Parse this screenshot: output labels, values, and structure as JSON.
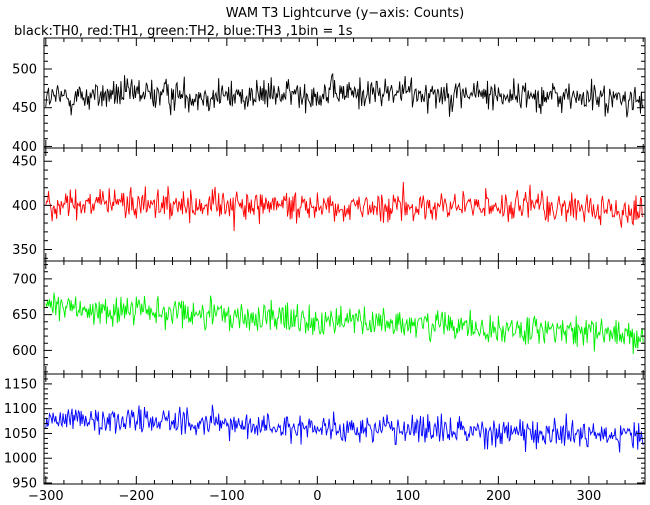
{
  "chart_data": {
    "type": "line",
    "title": "WAM T3 Lightcurve (y−axis: Counts)",
    "subtitle": "black:TH0, red:TH1, green:TH2, blue:TH3 ,1bin = 1s",
    "xlim": [
      -302,
      362
    ],
    "x_ticks": [
      -300,
      -200,
      -100,
      0,
      100,
      200,
      300
    ],
    "x_step": 1,
    "grid": false,
    "panels": [
      {
        "series": "TH0",
        "color": "#000000",
        "ylim": [
          398,
          540
        ],
        "y_ticks": [
          400,
          450,
          500
        ],
        "anchors": [
          [
            -300,
            462
          ],
          [
            -200,
            468
          ],
          [
            -100,
            465
          ],
          [
            0,
            468
          ],
          [
            100,
            470
          ],
          [
            200,
            467
          ],
          [
            300,
            463
          ],
          [
            360,
            458
          ]
        ],
        "noise": 24
      },
      {
        "series": "TH1",
        "color": "#ff0000",
        "ylim": [
          337,
          465
        ],
        "y_ticks": [
          350,
          400,
          450
        ],
        "anchors": [
          [
            -300,
            403
          ],
          [
            -200,
            400
          ],
          [
            -100,
            400
          ],
          [
            0,
            400
          ],
          [
            100,
            398
          ],
          [
            200,
            398
          ],
          [
            300,
            396
          ],
          [
            360,
            394
          ]
        ],
        "noise": 21
      },
      {
        "series": "TH2",
        "color": "#00ee00",
        "ylim": [
          567,
          725
        ],
        "y_ticks": [
          600,
          650,
          700
        ],
        "anchors": [
          [
            -300,
            660
          ],
          [
            -200,
            655
          ],
          [
            -100,
            648
          ],
          [
            0,
            642
          ],
          [
            100,
            636
          ],
          [
            200,
            630
          ],
          [
            300,
            626
          ],
          [
            360,
            622
          ]
        ],
        "noise": 26
      },
      {
        "series": "TH3",
        "color": "#0000ff",
        "ylim": [
          948,
          1170
        ],
        "y_ticks": [
          950,
          1000,
          1050,
          1100,
          1150
        ],
        "anchors": [
          [
            -300,
            1082
          ],
          [
            -200,
            1078
          ],
          [
            -100,
            1068
          ],
          [
            0,
            1062
          ],
          [
            100,
            1058
          ],
          [
            200,
            1055
          ],
          [
            300,
            1050
          ],
          [
            360,
            1045
          ]
        ],
        "noise": 33
      }
    ]
  }
}
